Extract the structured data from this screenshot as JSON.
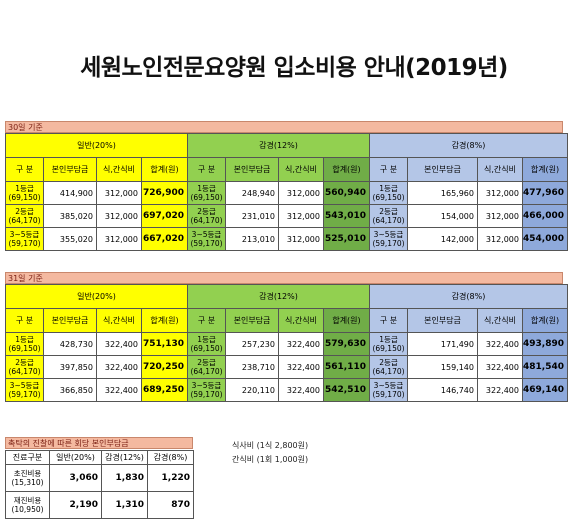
{
  "title": "세원노인전문요양원 입소비용 안내(2019년)",
  "headers": {
    "general": "일반(20%)",
    "reduced12": "감경(12%)",
    "reduced8": "감경(8%)",
    "grade": "구 분",
    "self": "본인부담금",
    "meal": "식,간식비",
    "total": "합계(원)"
  },
  "sections": [
    {
      "label": "30일 기준",
      "rows": [
        {
          "grade": "1등급",
          "sub": "(69,150)",
          "general": {
            "self": "414,900",
            "meal": "312,000",
            "total": "726,900"
          },
          "r12": {
            "self": "248,940",
            "meal": "312,000",
            "total": "560,940"
          },
          "r8": {
            "self": "165,960",
            "meal": "312,000",
            "total": "477,960"
          }
        },
        {
          "grade": "2등급",
          "sub": "(64,170)",
          "general": {
            "self": "385,020",
            "meal": "312,000",
            "total": "697,020"
          },
          "r12": {
            "self": "231,010",
            "meal": "312,000",
            "total": "543,010"
          },
          "r8": {
            "self": "154,000",
            "meal": "312,000",
            "total": "466,000"
          }
        },
        {
          "grade": "3~5등급",
          "sub": "(59,170)",
          "general": {
            "self": "355,020",
            "meal": "312,000",
            "total": "667,020"
          },
          "r12": {
            "self": "213,010",
            "meal": "312,000",
            "total": "525,010"
          },
          "r8": {
            "self": "142,000",
            "meal": "312,000",
            "total": "454,000"
          }
        }
      ]
    },
    {
      "label": "31일 기준",
      "rows": [
        {
          "grade": "1등급",
          "sub": "(69,150)",
          "general": {
            "self": "428,730",
            "meal": "322,400",
            "total": "751,130"
          },
          "r12": {
            "self": "257,230",
            "meal": "322,400",
            "total": "579,630"
          },
          "r8": {
            "self": "171,490",
            "meal": "322,400",
            "total": "493,890"
          }
        },
        {
          "grade": "2등급",
          "sub": "(64,170)",
          "general": {
            "self": "397,850",
            "meal": "322,400",
            "total": "720,250"
          },
          "r12": {
            "self": "238,710",
            "meal": "322,400",
            "total": "561,110"
          },
          "r8": {
            "self": "159,140",
            "meal": "322,400",
            "total": "481,540"
          }
        },
        {
          "grade": "3~5등급",
          "sub": "(59,170)",
          "general": {
            "self": "366,850",
            "meal": "322,400",
            "total": "689,250"
          },
          "r12": {
            "self": "220,110",
            "meal": "322,400",
            "total": "542,510"
          },
          "r8": {
            "self": "146,740",
            "meal": "322,400",
            "total": "469,140"
          }
        }
      ]
    }
  ],
  "notes": {
    "meal": "식사비 (1식 2,800원)",
    "snack": "간식비 (1회 1,000원)"
  },
  "small": {
    "label": "촉탁의 진찰에 따른 회당 본인부담금",
    "headers": [
      "진료구분",
      "일반(20%)",
      "감경(12%)",
      "감경(8%)"
    ],
    "rows": [
      {
        "name": "초진비용",
        "sub": "(15,310)",
        "v1": "3,060",
        "v2": "1,830",
        "v3": "1,220"
      },
      {
        "name": "재진비용",
        "sub": "(10,950)",
        "v1": "2,190",
        "v2": "1,310",
        "v3": "870"
      }
    ]
  }
}
